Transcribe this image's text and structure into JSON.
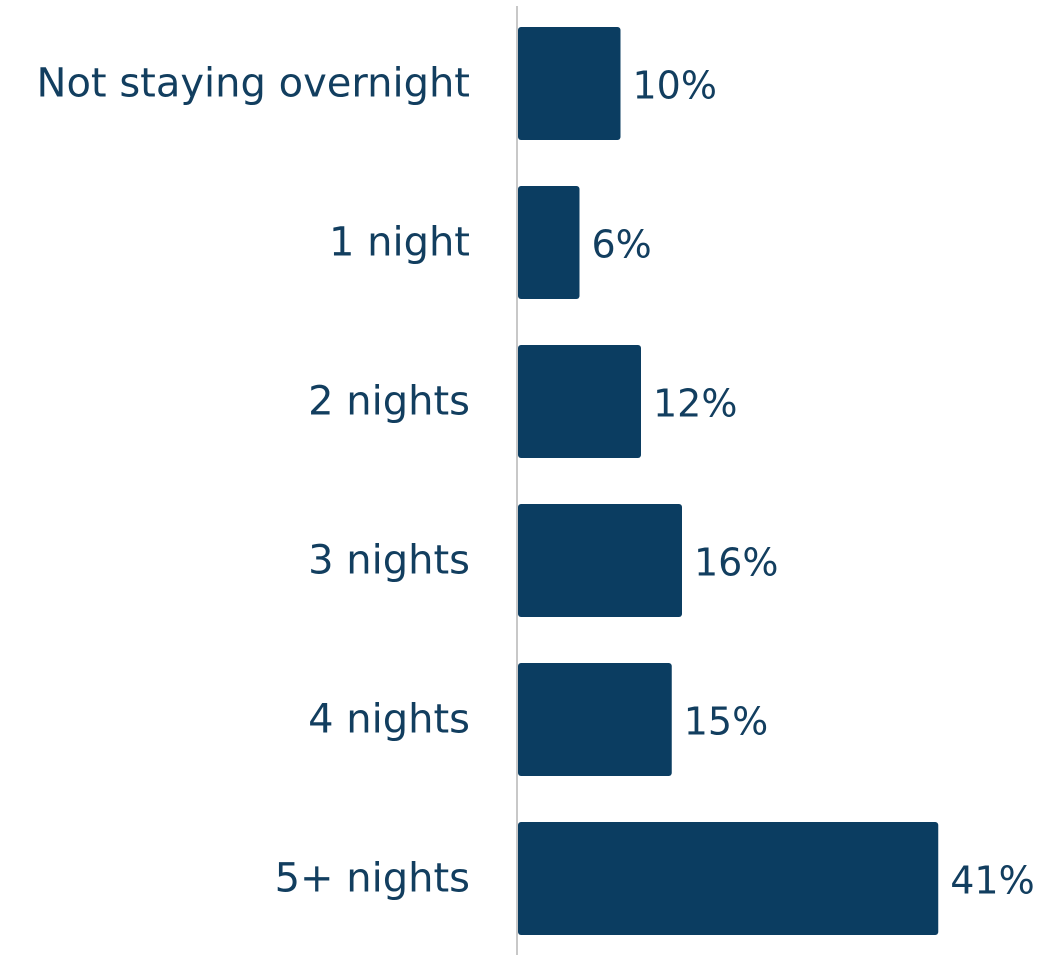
{
  "chart_data": {
    "type": "bar",
    "orientation": "horizontal",
    "categories": [
      "Not staying overnight",
      "1 night",
      "2 nights",
      "3 nights",
      "4 nights",
      "5+ nights"
    ],
    "values": [
      10,
      6,
      12,
      16,
      15,
      41
    ],
    "value_labels": [
      "10%",
      "6%",
      "12%",
      "16%",
      "15%",
      "41%"
    ],
    "unit": "%",
    "xlim": [
      0,
      41
    ],
    "grid": false,
    "legend": "none",
    "colors": {
      "bar": "#0b3d61",
      "text": "#123e5f",
      "axis": "#c8c8c8"
    }
  }
}
